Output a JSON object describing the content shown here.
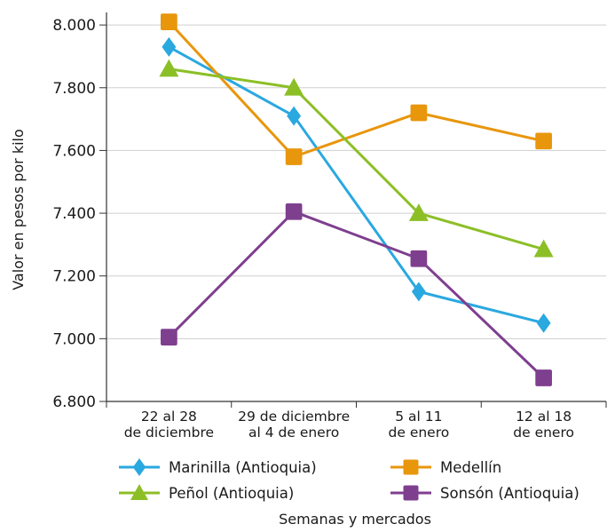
{
  "chart_data": {
    "type": "line",
    "ylabel": "Valor en pesos por kilo",
    "xlabel": "Semanas y mercados",
    "categories": [
      [
        "22 al 28",
        "de diciembre"
      ],
      [
        "29 de diciembre",
        "al 4 de enero"
      ],
      [
        "5 al 11",
        "de enero"
      ],
      [
        "12 al 18",
        "de enero"
      ]
    ],
    "ylim": [
      6800,
      8000
    ],
    "yticks": [
      {
        "value": 6800,
        "label": "6.800"
      },
      {
        "value": 7000,
        "label": "7.000"
      },
      {
        "value": 7200,
        "label": "7.200"
      },
      {
        "value": 7400,
        "label": "7.400"
      },
      {
        "value": 7600,
        "label": "7.600"
      },
      {
        "value": 7800,
        "label": "7.800"
      },
      {
        "value": 8000,
        "label": "8.000"
      }
    ],
    "grid": true,
    "legend_position": "bottom",
    "series": [
      {
        "name": "Marinilla (Antioquia)",
        "color": "#2aa8e0",
        "marker": "diamond",
        "values": [
          7930,
          7710,
          7150,
          7050
        ]
      },
      {
        "name": "Medellín",
        "color": "#e8960c",
        "marker": "square",
        "values": [
          8010,
          7580,
          7720,
          7630
        ]
      },
      {
        "name": "Peñol (Antioquia)",
        "color": "#8cbf26",
        "marker": "triangle",
        "values": [
          7860,
          7800,
          7400,
          7285
        ]
      },
      {
        "name": "Sonsón (Antioquia)",
        "color": "#7f3f8f",
        "marker": "square",
        "values": [
          7005,
          7405,
          7255,
          6875
        ]
      }
    ]
  }
}
